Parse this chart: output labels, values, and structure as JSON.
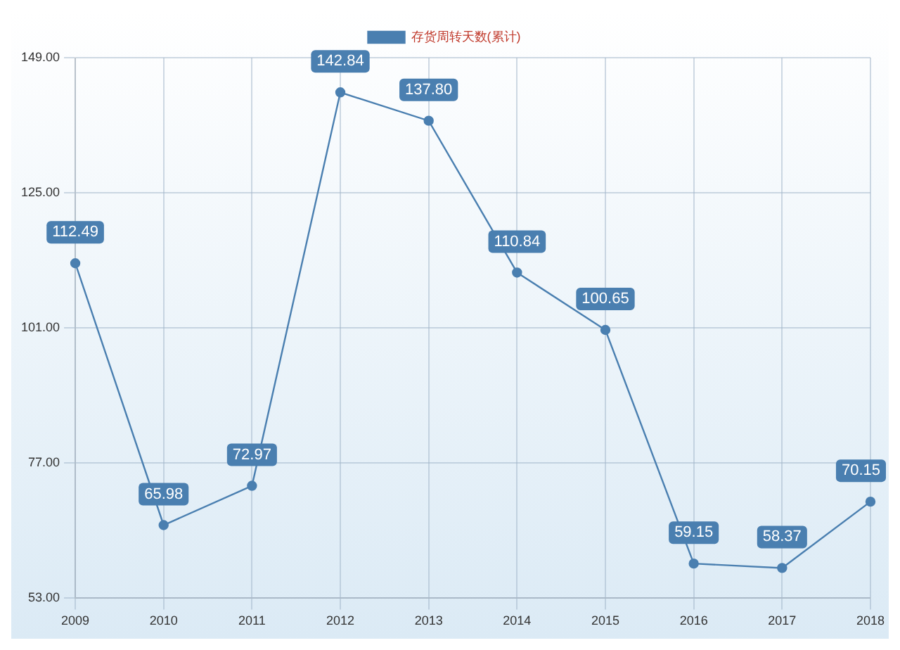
{
  "chart_data": {
    "type": "line",
    "categories": [
      "2009",
      "2010",
      "2011",
      "2012",
      "2013",
      "2014",
      "2015",
      "2016",
      "2017",
      "2018"
    ],
    "series": [
      {
        "name": "存货周转天数(累计)",
        "color": "#4a7fb0",
        "values": [
          112.49,
          65.98,
          72.97,
          142.84,
          137.8,
          110.84,
          100.65,
          59.15,
          58.37,
          70.15
        ],
        "value_labels": [
          "112.49",
          "65.98",
          "72.97",
          "142.84",
          "137.80",
          "110.84",
          "100.65",
          "59.15",
          "58.37",
          "70.15"
        ]
      }
    ],
    "ylim": [
      53,
      149
    ],
    "yticks": [
      {
        "value": 53,
        "label": "53.00"
      },
      {
        "value": 77,
        "label": "77.00"
      },
      {
        "value": 101,
        "label": "101.00"
      },
      {
        "value": 125,
        "label": "125.00"
      },
      {
        "value": 149,
        "label": "149.00"
      }
    ],
    "grid": true,
    "legend": "top",
    "marker": "circle"
  }
}
